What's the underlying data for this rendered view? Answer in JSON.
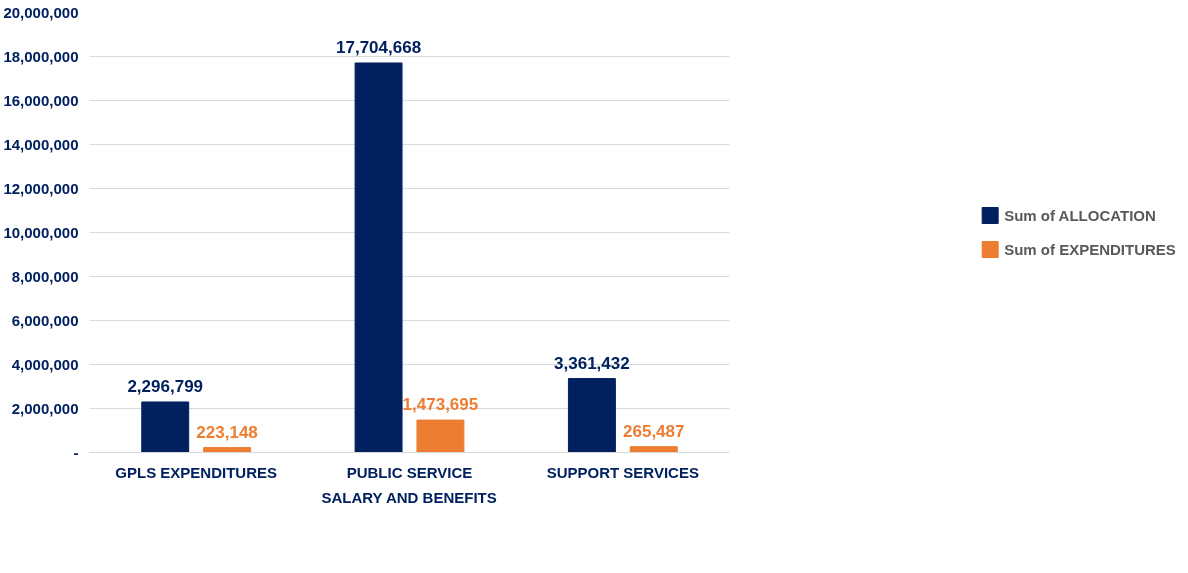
{
  "chart_data": {
    "type": "bar",
    "categories": [
      "GPLS EXPENDITURES",
      "PUBLIC SERVICE",
      "SUPPORT SERVICES"
    ],
    "xlabel": "SALARY AND BENEFITS",
    "series": [
      {
        "name": "Sum of ALLOCATION",
        "color": "#002060",
        "values": [
          2296799,
          17704668,
          3361432
        ],
        "value_labels": [
          "2,296,799",
          "17,704,668",
          "3,361,432"
        ]
      },
      {
        "name": "Sum of EXPENDITURES",
        "color": "#ed7d31",
        "values": [
          223148,
          1473695,
          265487
        ],
        "value_labels": [
          "223,148",
          "1,473,695",
          "265,487"
        ]
      }
    ],
    "ylim": [
      0,
      20000000
    ],
    "yticks": [
      {
        "value": 0,
        "label": "-"
      },
      {
        "value": 2000000,
        "label": "2,000,000"
      },
      {
        "value": 4000000,
        "label": "4,000,000"
      },
      {
        "value": 6000000,
        "label": "6,000,000"
      },
      {
        "value": 8000000,
        "label": "8,000,000"
      },
      {
        "value": 10000000,
        "label": "10,000,000"
      },
      {
        "value": 12000000,
        "label": "12,000,000"
      },
      {
        "value": 14000000,
        "label": "14,000,000"
      },
      {
        "value": 16000000,
        "label": "16,000,000"
      },
      {
        "value": 18000000,
        "label": "18,000,000"
      },
      {
        "value": 20000000,
        "label": "20,000,000"
      }
    ],
    "grid": "y",
    "legend": "right"
  }
}
